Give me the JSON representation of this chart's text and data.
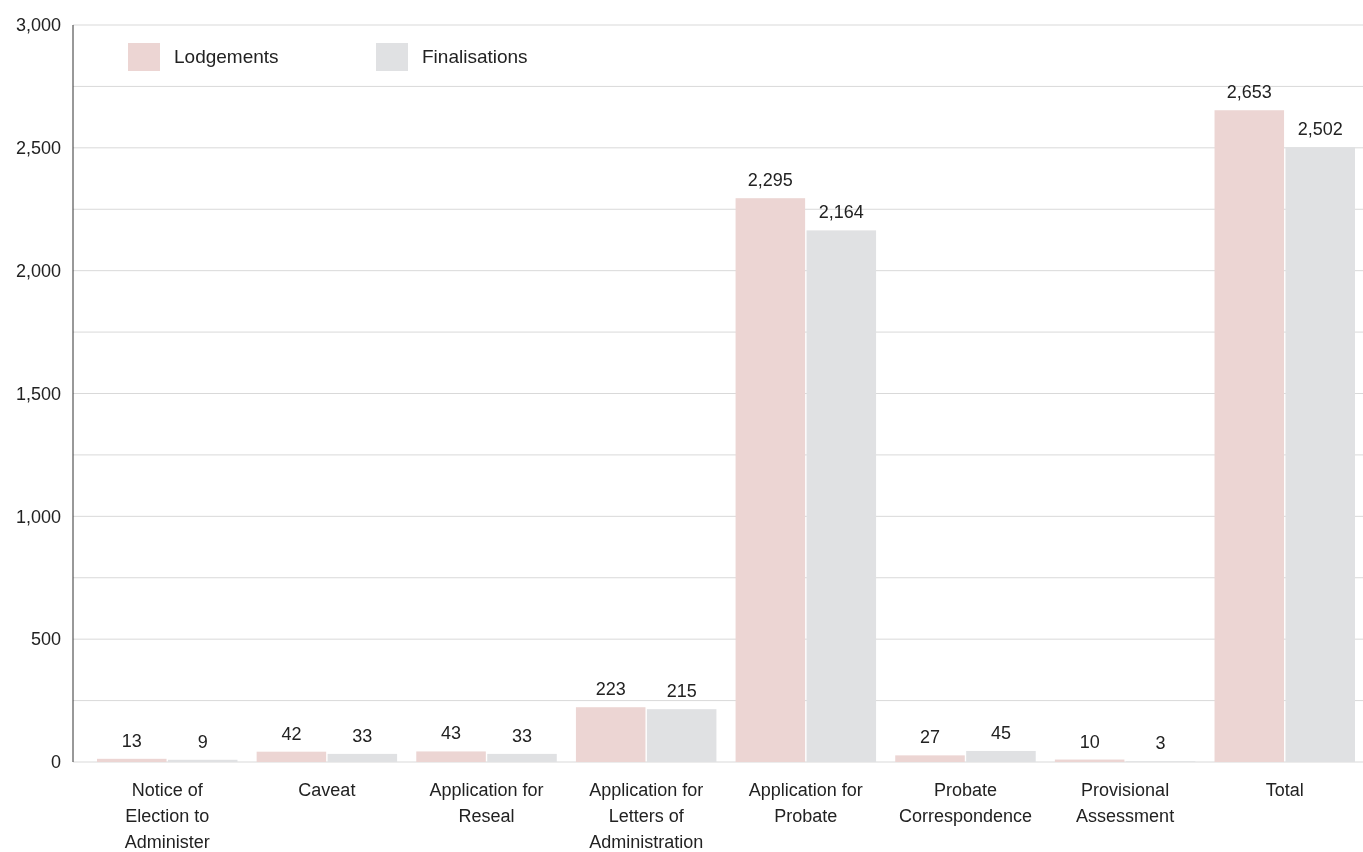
{
  "chart_data": {
    "type": "bar",
    "categories": [
      "Notice of Election to Administer",
      "Caveat",
      "Application for Reseal",
      "Application for Letters of Administration",
      "Application for Probate",
      "Probate Correspondence",
      "Provisional Assessment",
      "Total"
    ],
    "series": [
      {
        "name": "Lodgements",
        "color": "#ecd5d3",
        "values": [
          13,
          42,
          43,
          223,
          2295,
          27,
          10,
          2653
        ],
        "value_labels": [
          "13",
          "42",
          "43",
          "223",
          "2,295",
          "27",
          "10",
          "2,653"
        ]
      },
      {
        "name": "Finalisations",
        "color": "#e0e1e3",
        "values": [
          9,
          33,
          33,
          215,
          2164,
          45,
          3,
          2502
        ],
        "value_labels": [
          "9",
          "33",
          "33",
          "215",
          "2,164",
          "45",
          "3",
          "2,502"
        ]
      }
    ],
    "ylim": [
      0,
      3000
    ],
    "yticks": [
      0,
      {
        "value": 250,
        "label": null
      },
      500,
      {
        "value": 750,
        "label": null
      },
      {
        "value": 1000,
        "label": "1,000"
      },
      {
        "value": 1250,
        "label": null
      },
      {
        "value": 1500,
        "label": "1,500"
      },
      {
        "value": 1750,
        "label": null
      },
      {
        "value": 2000,
        "label": "2,000"
      },
      {
        "value": 2250,
        "label": null
      },
      {
        "value": 2500,
        "label": "2,500"
      },
      {
        "value": 2750,
        "label": null
      },
      {
        "value": 3000,
        "label": "3,000"
      }
    ],
    "grid": "y",
    "legend": "top left"
  }
}
